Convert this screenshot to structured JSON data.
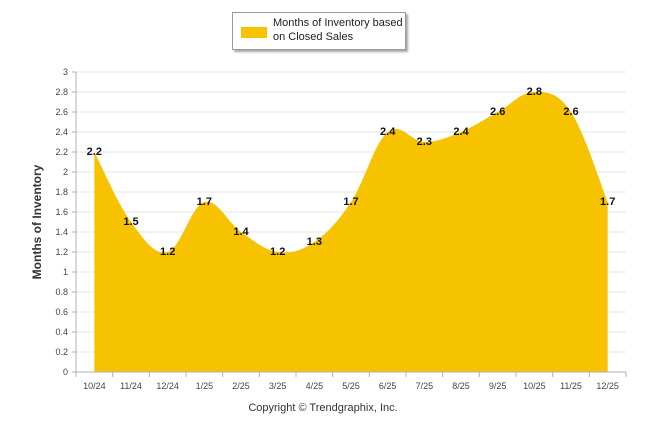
{
  "chart_data": {
    "type": "area",
    "categories": [
      "10/24",
      "11/24",
      "12/24",
      "1/25",
      "2/25",
      "3/25",
      "4/25",
      "5/25",
      "6/25",
      "7/25",
      "8/25",
      "9/25",
      "10/25",
      "11/25",
      "12/25"
    ],
    "series": [
      {
        "name": "Months of Inventory based on Closed Sales",
        "values": [
          2.2,
          1.5,
          1.2,
          1.7,
          1.4,
          1.2,
          1.3,
          1.7,
          2.4,
          2.3,
          2.4,
          2.6,
          2.8,
          2.6,
          1.7
        ]
      }
    ],
    "ylabel": "Months of Inventory",
    "ylim": [
      0,
      3
    ],
    "yticks": [
      "0",
      "0.2",
      "0.4",
      "0.6",
      "0.8",
      "1",
      "1.2",
      "1.4",
      "1.6",
      "1.8",
      "2",
      "2.2",
      "2.4",
      "2.6",
      "2.8",
      "3"
    ],
    "grid": true,
    "legend_position": "top-center",
    "copyright": "Copyright © Trendgraphix, Inc.",
    "colors": {
      "fill": "#F7C200",
      "grid": "#e6e6e6",
      "axis": "#b0b0b0"
    }
  }
}
